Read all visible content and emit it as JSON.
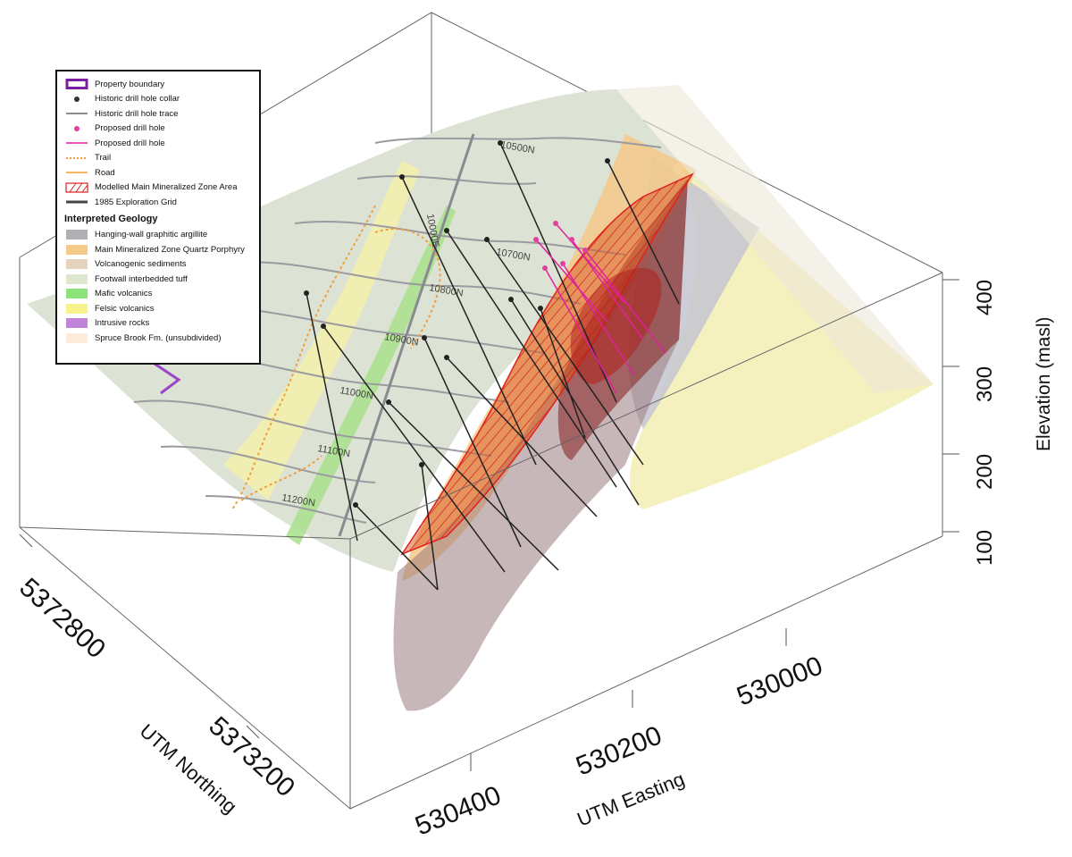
{
  "legend": {
    "items": [
      {
        "label": "Property boundary",
        "symbol": "box-outline",
        "color": "#7b1fa2"
      },
      {
        "label": "Historic drill hole collar",
        "symbol": "dot",
        "color": "#333333"
      },
      {
        "label": "Historic drill hole trace",
        "symbol": "line",
        "color": "#666666"
      },
      {
        "label": "Proposed drill hole",
        "symbol": "dot",
        "color": "#e040a0"
      },
      {
        "label": "Proposed drill hole",
        "symbol": "line",
        "color": "#e020a0"
      },
      {
        "label": "Trail",
        "symbol": "dotted-line",
        "color": "#f0a040"
      },
      {
        "label": "Road",
        "symbol": "line",
        "color": "#f0a030"
      },
      {
        "label": "Modelled Main Mineralized Zone Area",
        "symbol": "hatch",
        "color": "#e02020"
      },
      {
        "label": "1985 Exploration Grid",
        "symbol": "thick-line",
        "color": "#444444"
      }
    ],
    "geology_title": "Interpreted Geology",
    "geology": [
      {
        "label": "Hanging-wall graphitic argillite",
        "color": "#b0b0b4"
      },
      {
        "label": "Main Mineralized Zone Quartz Porphyry",
        "color": "#f5c98a"
      },
      {
        "label": "Volcanogenic sediments",
        "color": "#e6d3bd"
      },
      {
        "label": "Footwall interbedded tuff",
        "color": "#dde8cf"
      },
      {
        "label": "Mafic volcanics",
        "color": "#8ee27a"
      },
      {
        "label": "Felsic volcanics",
        "color": "#f8f28a"
      },
      {
        "label": "Intrusive rocks",
        "color": "#c084d8"
      },
      {
        "label": "Spruce Brook Fm. (unsubdivided)",
        "color": "#fbecdc"
      }
    ]
  },
  "axes": {
    "elevation_label": "Elevation (masl)",
    "elevation_ticks": [
      "100",
      "200",
      "300",
      "400"
    ],
    "easting_label": "UTM Easting",
    "easting_ticks": [
      "530400",
      "530200",
      "530000"
    ],
    "northing_label": "UTM Northing",
    "northing_ticks": [
      "5372800",
      "5373200"
    ]
  },
  "grid_labels": [
    "10500N",
    "10700N",
    "10800N",
    "10900N",
    "11000N",
    "11100N",
    "11200N",
    "10000E"
  ]
}
